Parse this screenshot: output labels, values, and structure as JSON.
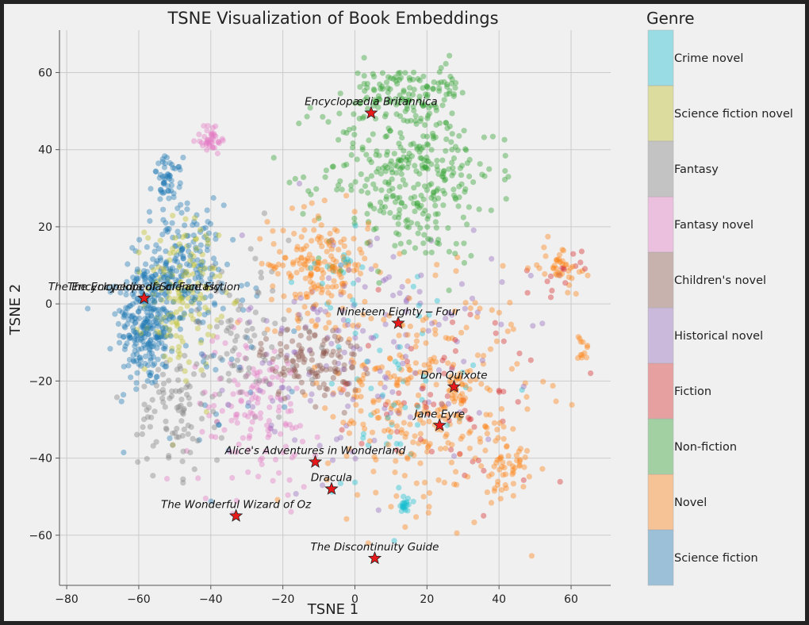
{
  "chart_data": {
    "type": "scatter",
    "title": "TSNE Visualization of Book Embeddings",
    "xlabel": "TSNE 1",
    "ylabel": "TSNE 2",
    "xlim": [
      -82,
      71
    ],
    "ylim": [
      -73,
      71
    ],
    "xticks": [
      -80,
      -60,
      -40,
      -20,
      0,
      20,
      40,
      60
    ],
    "yticks": [
      -60,
      -40,
      -20,
      0,
      20,
      40,
      60
    ],
    "xtick_labels": [
      "−80",
      "−60",
      "−40",
      "−20",
      "0",
      "20",
      "40",
      "60"
    ],
    "ytick_labels": [
      "−60",
      "−40",
      "−20",
      "0",
      "20",
      "40",
      "60"
    ],
    "grid": true,
    "legend_title": "Genre",
    "legend_position": "right",
    "genres": [
      {
        "name": "Crime novel",
        "color": "#17becf"
      },
      {
        "name": "Science fiction novel",
        "color": "#bcbd22"
      },
      {
        "name": "Fantasy",
        "color": "#7f7f7f"
      },
      {
        "name": "Fantasy novel",
        "color": "#e377c2"
      },
      {
        "name": "Children's novel",
        "color": "#8c564b"
      },
      {
        "name": "Historical novel",
        "color": "#9467bd"
      },
      {
        "name": "Fiction",
        "color": "#d62728"
      },
      {
        "name": "Non-fiction",
        "color": "#2ca02c"
      },
      {
        "name": "Novel",
        "color": "#ff7f0e"
      },
      {
        "name": "Science fiction",
        "color": "#1f77b4"
      }
    ],
    "clusters": [
      {
        "genre": "Science fiction",
        "cx": -58,
        "cy": -5,
        "sx": 4,
        "sy": 8,
        "n": 260
      },
      {
        "genre": "Science fiction",
        "cx": -48,
        "cy": 10,
        "sx": 6,
        "sy": 8,
        "n": 180
      },
      {
        "genre": "Science fiction",
        "cx": -52,
        "cy": 32,
        "sx": 2,
        "sy": 3,
        "n": 50
      },
      {
        "genre": "Science fiction",
        "cx": -40,
        "cy": -10,
        "sx": 12,
        "sy": 15,
        "n": 60
      },
      {
        "genre": "Science fiction novel",
        "cx": -48,
        "cy": 2,
        "sx": 5,
        "sy": 10,
        "n": 150
      },
      {
        "genre": "Non-fiction",
        "cx": 15,
        "cy": 35,
        "sx": 12,
        "sy": 12,
        "n": 380
      },
      {
        "genre": "Non-fiction",
        "cx": 12,
        "cy": 55,
        "sx": 6,
        "sy": 3,
        "n": 60
      },
      {
        "genre": "Non-fiction",
        "cx": 25,
        "cy": 57,
        "sx": 3,
        "sy": 2,
        "n": 25
      },
      {
        "genre": "Novel",
        "cx": -10,
        "cy": 10,
        "sx": 7,
        "sy": 7,
        "n": 180
      },
      {
        "genre": "Novel",
        "cx": 20,
        "cy": -25,
        "sx": 14,
        "sy": 14,
        "n": 320
      },
      {
        "genre": "Novel",
        "cx": 42,
        "cy": -42,
        "sx": 3,
        "sy": 4,
        "n": 45
      },
      {
        "genre": "Novel",
        "cx": 57,
        "cy": 10,
        "sx": 3,
        "sy": 3,
        "n": 40
      },
      {
        "genre": "Novel",
        "cx": 63,
        "cy": -12,
        "sx": 1,
        "sy": 2,
        "n": 12
      },
      {
        "genre": "Children's novel",
        "cx": -12,
        "cy": -15,
        "sx": 7,
        "sy": 5,
        "n": 120
      },
      {
        "genre": "Historical novel",
        "cx": 5,
        "cy": -10,
        "sx": 18,
        "sy": 15,
        "n": 160
      },
      {
        "genre": "Fantasy novel",
        "cx": -28,
        "cy": -28,
        "sx": 9,
        "sy": 10,
        "n": 140
      },
      {
        "genre": "Fantasy novel",
        "cx": -40,
        "cy": 43,
        "sx": 2,
        "sy": 2,
        "n": 40
      },
      {
        "genre": "Fantasy",
        "cx": -50,
        "cy": -28,
        "sx": 5,
        "sy": 8,
        "n": 90
      },
      {
        "genre": "Fantasy",
        "cx": -32,
        "cy": -10,
        "sx": 10,
        "sy": 12,
        "n": 90
      },
      {
        "genre": "Fiction",
        "cx": 30,
        "cy": -25,
        "sx": 15,
        "sy": 12,
        "n": 60
      },
      {
        "genre": "Fiction",
        "cx": 57,
        "cy": 8,
        "sx": 3,
        "sy": 3,
        "n": 15
      },
      {
        "genre": "Crime novel",
        "cx": 10,
        "cy": -25,
        "sx": 12,
        "sy": 15,
        "n": 50
      },
      {
        "genre": "Crime novel",
        "cx": 14,
        "cy": -52,
        "sx": 1,
        "sy": 1,
        "n": 20
      },
      {
        "genre": "Crime novel",
        "cx": -5,
        "cy": 8,
        "sx": 5,
        "sy": 6,
        "n": 20
      }
    ],
    "highlighted_books": [
      {
        "label": "Encyclopædia Britannica",
        "x": 4.5,
        "y": 49.5,
        "label_pos": "above"
      },
      {
        "label": "The Encyclopedia of Science Fiction",
        "x": -58.5,
        "y": 1.5,
        "label_pos": "above"
      },
      {
        "label": "The Encyclopedia of Fantasy",
        "x": -58.5,
        "y": 1.5,
        "label_pos": "above"
      },
      {
        "label": "Nineteen Eighty − Four",
        "x": 12,
        "y": -5,
        "label_pos": "above"
      },
      {
        "label": "Don Quixote",
        "x": 27.5,
        "y": -21.5,
        "label_pos": "above"
      },
      {
        "label": "Jane Eyre",
        "x": 23.5,
        "y": -31.5,
        "label_pos": "above"
      },
      {
        "label": "Alice's Adventures in Wonderland",
        "x": -11,
        "y": -41,
        "label_pos": "above"
      },
      {
        "label": "Dracula",
        "x": -6.5,
        "y": -48,
        "label_pos": "above"
      },
      {
        "label": "The Wonderful Wizard of Oz",
        "x": -33,
        "y": -55,
        "label_pos": "above"
      },
      {
        "label": "The Discontinuity Guide",
        "x": 5.5,
        "y": -66,
        "label_pos": "above"
      }
    ]
  }
}
